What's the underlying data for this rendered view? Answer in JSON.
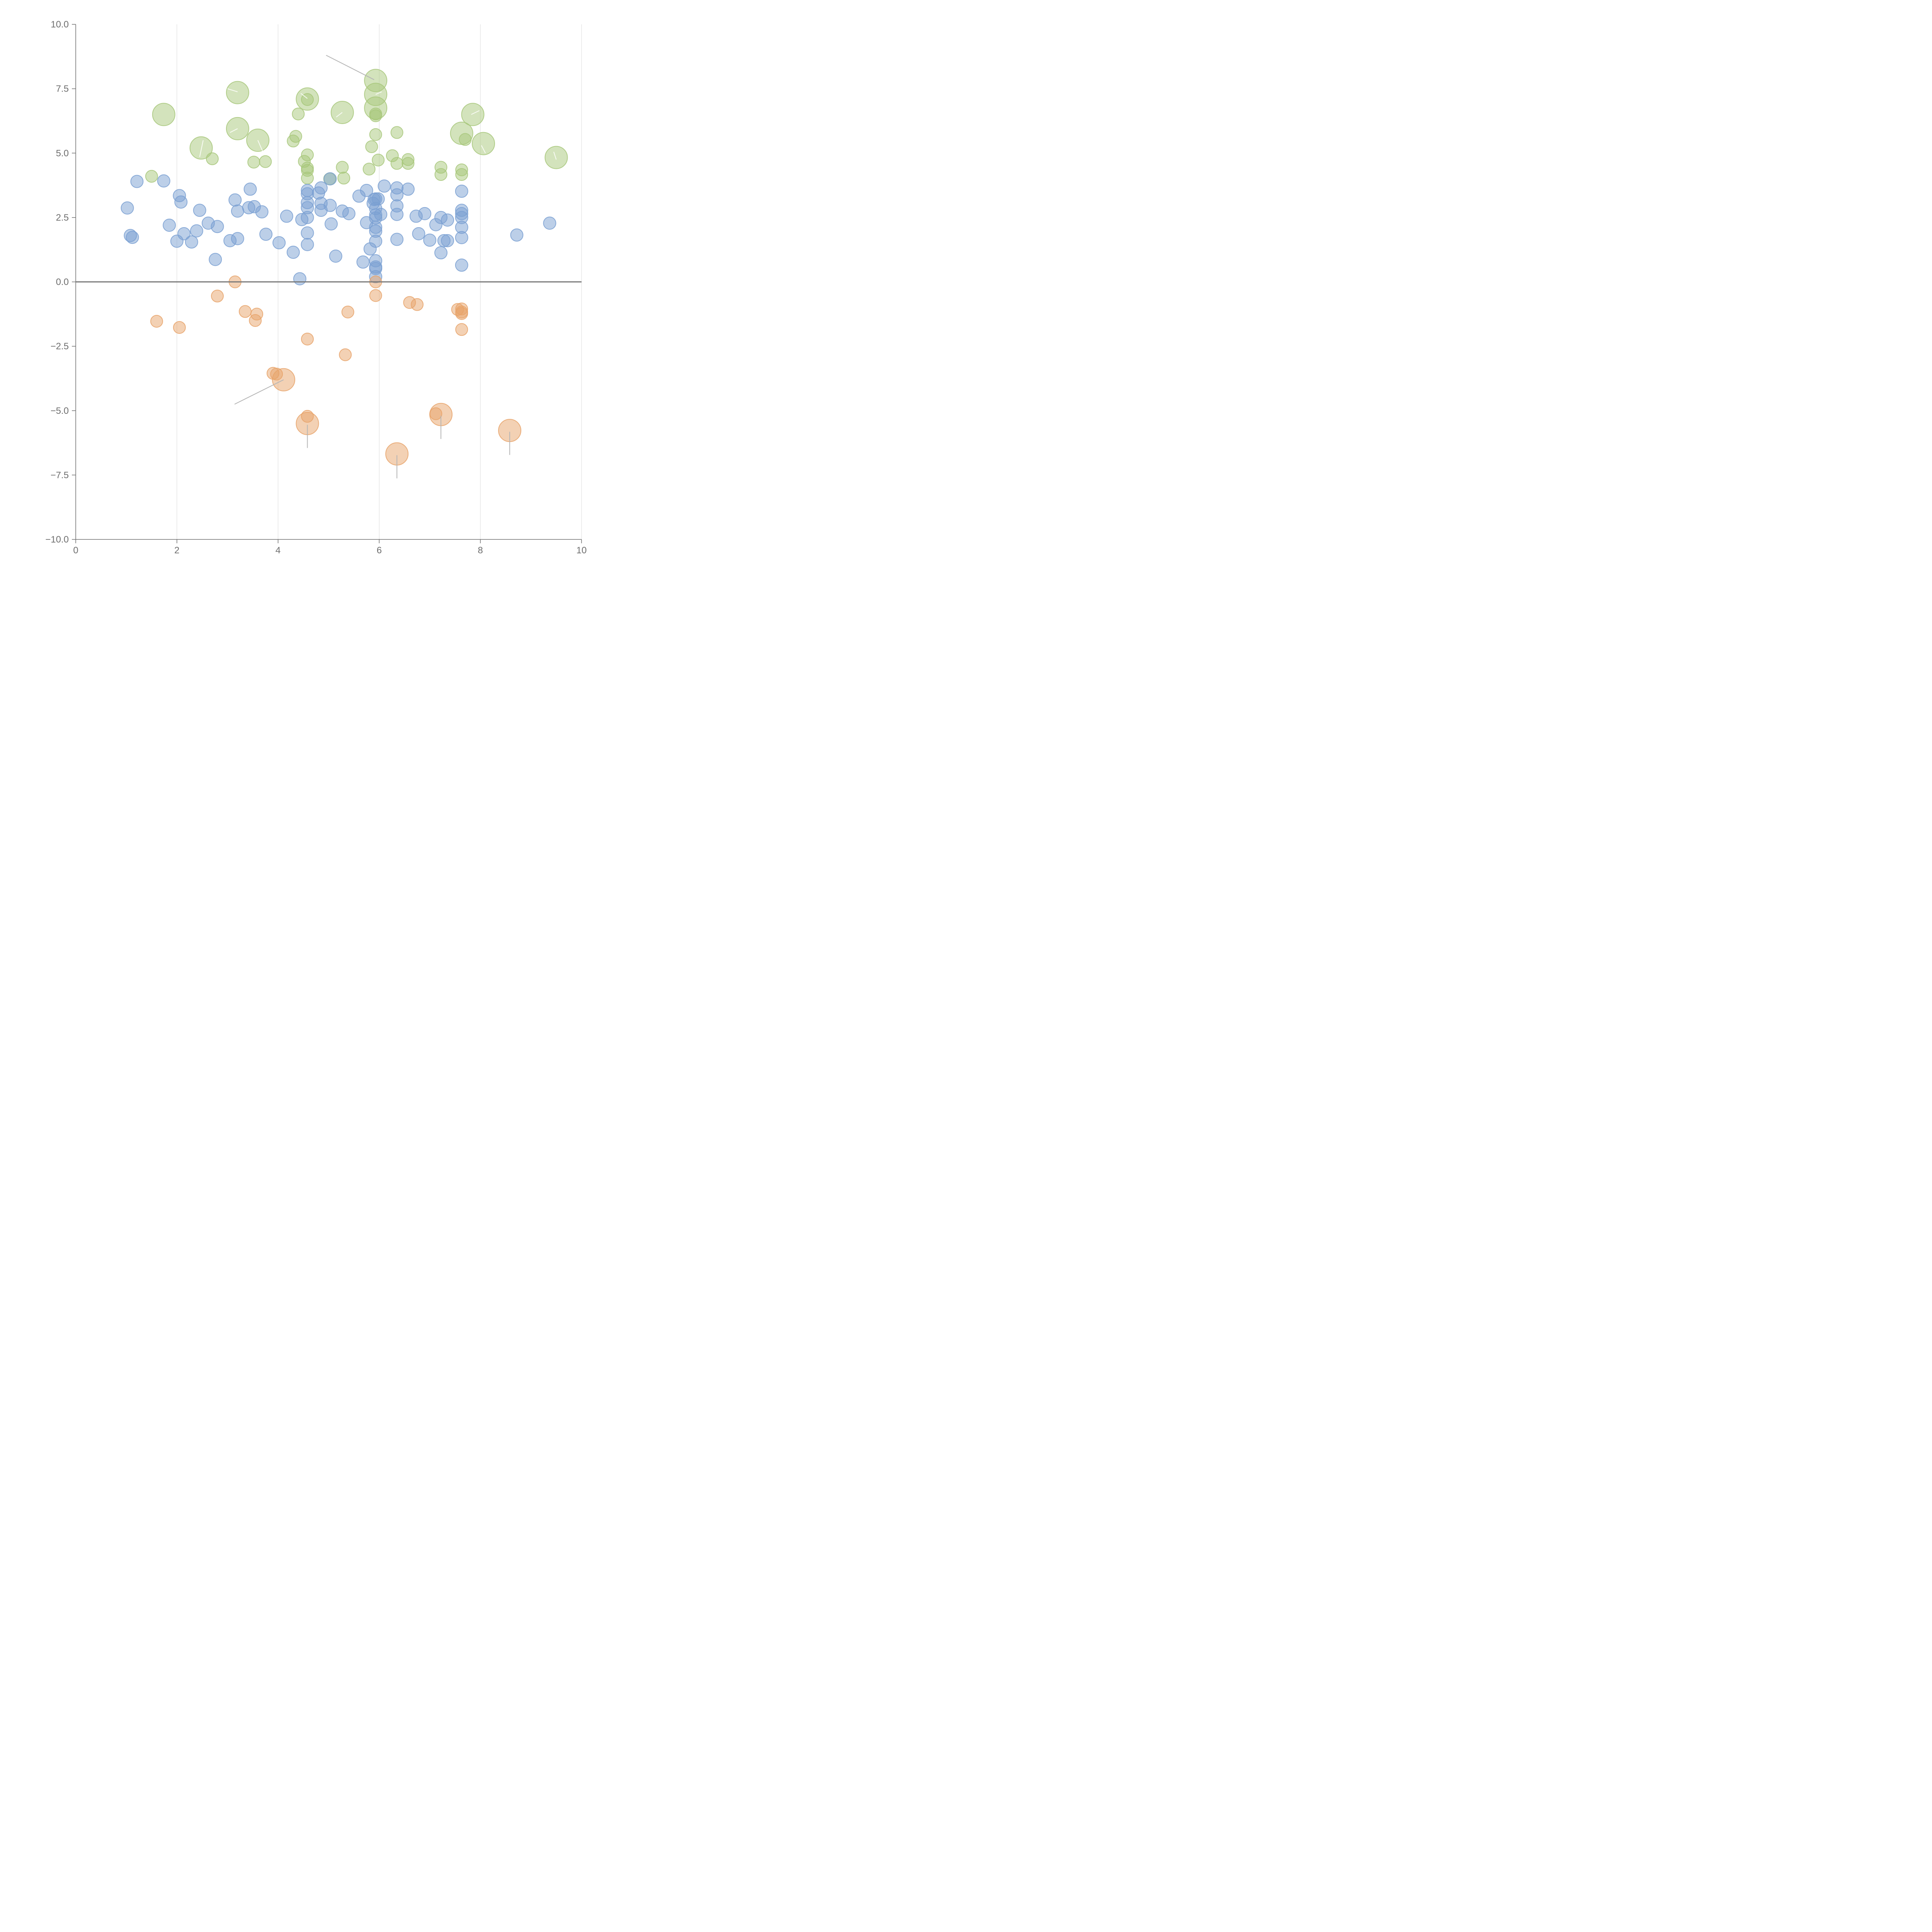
{
  "chart_data": {
    "type": "scatter",
    "title": "",
    "xlabel": "",
    "ylabel": "",
    "xlim": [
      0,
      10
    ],
    "ylim": [
      -10,
      10
    ],
    "x_ticks": [
      0,
      2,
      4,
      6,
      8,
      10
    ],
    "x_tick_labels": [
      "0",
      "2",
      "4",
      "6",
      "8",
      "10"
    ],
    "y_ticks": [
      10,
      7.5,
      5,
      2.5,
      0,
      -2.5,
      -5,
      -7.5,
      -10
    ],
    "y_tick_labels": [
      "10.0",
      "7.5",
      "5.0",
      "2.5",
      "0.0",
      "−2.5",
      "−5.0",
      "−7.5",
      "−10.0"
    ],
    "x_grid": true,
    "y_grid": false,
    "zero_line": true,
    "colors": {
      "green": "#a7c77a",
      "blue": "#7aa0d2",
      "orange": "#e8a36a",
      "tick_text": "#6e6e6e",
      "axis": "#6e6e6e",
      "grid": "#d9d9d9",
      "leader_dark": "#b5b5b5",
      "leader_light": "#ffffff"
    },
    "series": [
      {
        "color_key": "green",
        "points": [
          {
            "x": 3.2,
            "y": 7.35,
            "size": "large"
          },
          {
            "x": 1.74,
            "y": 6.5,
            "size": "large"
          },
          {
            "x": 2.48,
            "y": 5.2,
            "size": "large"
          },
          {
            "x": 3.2,
            "y": 5.95,
            "size": "large"
          },
          {
            "x": 3.6,
            "y": 5.5,
            "size": "large"
          },
          {
            "x": 4.58,
            "y": 7.1,
            "size": "large"
          },
          {
            "x": 5.27,
            "y": 6.58,
            "size": "large"
          },
          {
            "x": 5.93,
            "y": 7.82,
            "size": "large"
          },
          {
            "x": 5.93,
            "y": 7.28,
            "size": "large"
          },
          {
            "x": 5.93,
            "y": 6.75,
            "size": "large"
          },
          {
            "x": 7.63,
            "y": 5.77,
            "size": "large"
          },
          {
            "x": 7.85,
            "y": 6.5,
            "size": "large"
          },
          {
            "x": 8.06,
            "y": 5.37,
            "size": "large"
          },
          {
            "x": 9.5,
            "y": 4.83,
            "size": "large"
          },
          {
            "x": 1.5,
            "y": 4.1,
            "size": "small"
          },
          {
            "x": 2.7,
            "y": 4.78,
            "size": "small"
          },
          {
            "x": 3.52,
            "y": 4.65,
            "size": "small"
          },
          {
            "x": 3.75,
            "y": 4.67,
            "size": "small"
          },
          {
            "x": 4.3,
            "y": 5.47,
            "size": "small"
          },
          {
            "x": 4.35,
            "y": 5.65,
            "size": "small"
          },
          {
            "x": 4.4,
            "y": 6.52,
            "size": "small"
          },
          {
            "x": 4.58,
            "y": 7.08,
            "size": "small"
          },
          {
            "x": 4.52,
            "y": 4.68,
            "size": "small"
          },
          {
            "x": 4.58,
            "y": 4.93,
            "size": "small"
          },
          {
            "x": 4.58,
            "y": 4.42,
            "size": "small"
          },
          {
            "x": 4.58,
            "y": 4.33,
            "size": "small"
          },
          {
            "x": 4.58,
            "y": 4.03,
            "size": "small"
          },
          {
            "x": 5.02,
            "y": 4.0,
            "size": "small"
          },
          {
            "x": 5.27,
            "y": 4.45,
            "size": "small"
          },
          {
            "x": 5.3,
            "y": 4.03,
            "size": "small"
          },
          {
            "x": 5.8,
            "y": 4.38,
            "size": "small"
          },
          {
            "x": 5.85,
            "y": 5.25,
            "size": "small"
          },
          {
            "x": 5.93,
            "y": 5.72,
            "size": "small"
          },
          {
            "x": 5.93,
            "y": 6.52,
            "size": "small"
          },
          {
            "x": 5.93,
            "y": 6.45,
            "size": "small"
          },
          {
            "x": 5.98,
            "y": 4.73,
            "size": "small"
          },
          {
            "x": 6.26,
            "y": 4.9,
            "size": "small"
          },
          {
            "x": 6.35,
            "y": 5.8,
            "size": "small"
          },
          {
            "x": 6.35,
            "y": 4.6,
            "size": "small"
          },
          {
            "x": 6.57,
            "y": 4.75,
            "size": "small"
          },
          {
            "x": 6.57,
            "y": 4.6,
            "size": "small"
          },
          {
            "x": 7.22,
            "y": 4.45,
            "size": "small"
          },
          {
            "x": 7.22,
            "y": 4.17,
            "size": "small"
          },
          {
            "x": 7.63,
            "y": 4.35,
            "size": "small"
          },
          {
            "x": 7.63,
            "y": 4.17,
            "size": "small"
          },
          {
            "x": 7.7,
            "y": 5.53,
            "size": "small"
          }
        ]
      },
      {
        "color_key": "blue",
        "points": [
          {
            "x": 1.02,
            "y": 2.87
          },
          {
            "x": 1.08,
            "y": 1.8
          },
          {
            "x": 1.12,
            "y": 1.73
          },
          {
            "x": 1.21,
            "y": 3.9
          },
          {
            "x": 1.74,
            "y": 3.92
          },
          {
            "x": 1.85,
            "y": 2.2
          },
          {
            "x": 2.0,
            "y": 1.58
          },
          {
            "x": 2.05,
            "y": 3.35
          },
          {
            "x": 2.08,
            "y": 3.1
          },
          {
            "x": 2.14,
            "y": 1.87
          },
          {
            "x": 2.29,
            "y": 1.55
          },
          {
            "x": 2.39,
            "y": 1.98
          },
          {
            "x": 2.45,
            "y": 2.78
          },
          {
            "x": 2.62,
            "y": 2.28
          },
          {
            "x": 2.76,
            "y": 0.87
          },
          {
            "x": 2.8,
            "y": 2.15
          },
          {
            "x": 3.05,
            "y": 1.6
          },
          {
            "x": 3.15,
            "y": 3.18
          },
          {
            "x": 3.2,
            "y": 1.68
          },
          {
            "x": 3.2,
            "y": 2.75
          },
          {
            "x": 3.42,
            "y": 2.88
          },
          {
            "x": 3.45,
            "y": 3.6
          },
          {
            "x": 3.53,
            "y": 2.92
          },
          {
            "x": 3.68,
            "y": 2.72
          },
          {
            "x": 3.76,
            "y": 1.85
          },
          {
            "x": 4.02,
            "y": 1.52
          },
          {
            "x": 4.17,
            "y": 2.55
          },
          {
            "x": 4.3,
            "y": 1.15
          },
          {
            "x": 4.43,
            "y": 0.12
          },
          {
            "x": 4.47,
            "y": 2.42
          },
          {
            "x": 4.58,
            "y": 3.55
          },
          {
            "x": 4.58,
            "y": 3.42
          },
          {
            "x": 4.58,
            "y": 3.08
          },
          {
            "x": 4.58,
            "y": 2.88
          },
          {
            "x": 4.58,
            "y": 2.5
          },
          {
            "x": 4.58,
            "y": 1.9
          },
          {
            "x": 4.58,
            "y": 1.45
          },
          {
            "x": 4.8,
            "y": 3.45
          },
          {
            "x": 4.85,
            "y": 3.65
          },
          {
            "x": 4.85,
            "y": 3.05
          },
          {
            "x": 4.85,
            "y": 2.78
          },
          {
            "x": 5.03,
            "y": 2.97
          },
          {
            "x": 5.05,
            "y": 2.25
          },
          {
            "x": 5.03,
            "y": 4.0
          },
          {
            "x": 5.14,
            "y": 1.0
          },
          {
            "x": 5.27,
            "y": 2.75
          },
          {
            "x": 5.4,
            "y": 2.65
          },
          {
            "x": 5.6,
            "y": 3.33
          },
          {
            "x": 5.68,
            "y": 0.77
          },
          {
            "x": 5.75,
            "y": 2.3
          },
          {
            "x": 5.75,
            "y": 3.55
          },
          {
            "x": 5.82,
            "y": 1.28
          },
          {
            "x": 5.88,
            "y": 3.05
          },
          {
            "x": 5.9,
            "y": 3.2
          },
          {
            "x": 5.93,
            "y": 3.22
          },
          {
            "x": 5.93,
            "y": 2.85
          },
          {
            "x": 5.93,
            "y": 2.6
          },
          {
            "x": 5.93,
            "y": 2.48
          },
          {
            "x": 5.93,
            "y": 2.12
          },
          {
            "x": 5.93,
            "y": 1.97
          },
          {
            "x": 5.93,
            "y": 1.58
          },
          {
            "x": 5.93,
            "y": 0.82
          },
          {
            "x": 5.93,
            "y": 0.58
          },
          {
            "x": 5.93,
            "y": 0.52
          },
          {
            "x": 5.93,
            "y": 0.2
          },
          {
            "x": 5.98,
            "y": 3.22
          },
          {
            "x": 6.03,
            "y": 2.62
          },
          {
            "x": 6.1,
            "y": 3.72
          },
          {
            "x": 6.35,
            "y": 3.65
          },
          {
            "x": 6.35,
            "y": 3.38
          },
          {
            "x": 6.35,
            "y": 2.95
          },
          {
            "x": 6.35,
            "y": 2.62
          },
          {
            "x": 6.35,
            "y": 1.65
          },
          {
            "x": 6.57,
            "y": 3.6
          },
          {
            "x": 6.73,
            "y": 2.55
          },
          {
            "x": 6.78,
            "y": 1.87
          },
          {
            "x": 6.9,
            "y": 2.65
          },
          {
            "x": 7.0,
            "y": 1.62
          },
          {
            "x": 7.12,
            "y": 2.22
          },
          {
            "x": 7.22,
            "y": 2.5
          },
          {
            "x": 7.22,
            "y": 1.13
          },
          {
            "x": 7.28,
            "y": 1.6
          },
          {
            "x": 7.35,
            "y": 1.6
          },
          {
            "x": 7.35,
            "y": 2.4
          },
          {
            "x": 7.63,
            "y": 3.52
          },
          {
            "x": 7.63,
            "y": 2.78
          },
          {
            "x": 7.63,
            "y": 2.65
          },
          {
            "x": 7.63,
            "y": 2.5
          },
          {
            "x": 7.63,
            "y": 2.12
          },
          {
            "x": 7.63,
            "y": 1.72
          },
          {
            "x": 7.63,
            "y": 0.65
          },
          {
            "x": 8.72,
            "y": 1.82
          },
          {
            "x": 9.37,
            "y": 2.28
          }
        ]
      },
      {
        "color_key": "orange",
        "points": [
          {
            "x": 4.11,
            "y": -3.8,
            "size": "large"
          },
          {
            "x": 4.58,
            "y": -5.5,
            "size": "large"
          },
          {
            "x": 6.35,
            "y": -6.68,
            "size": "large"
          },
          {
            "x": 7.22,
            "y": -5.15,
            "size": "large"
          },
          {
            "x": 8.58,
            "y": -5.77,
            "size": "large"
          },
          {
            "x": 1.6,
            "y": -1.53,
            "size": "small"
          },
          {
            "x": 2.05,
            "y": -1.77,
            "size": "small"
          },
          {
            "x": 2.8,
            "y": -0.55,
            "size": "small"
          },
          {
            "x": 3.15,
            "y": 0.0,
            "size": "small"
          },
          {
            "x": 3.35,
            "y": -1.15,
            "size": "small"
          },
          {
            "x": 3.55,
            "y": -1.5,
            "size": "small"
          },
          {
            "x": 3.58,
            "y": -1.25,
            "size": "small"
          },
          {
            "x": 3.9,
            "y": -3.55,
            "size": "small"
          },
          {
            "x": 3.97,
            "y": -3.58,
            "size": "small"
          },
          {
            "x": 4.58,
            "y": -2.22,
            "size": "small"
          },
          {
            "x": 4.58,
            "y": -5.22,
            "size": "small"
          },
          {
            "x": 5.33,
            "y": -2.83,
            "size": "small"
          },
          {
            "x": 5.38,
            "y": -1.17,
            "size": "small"
          },
          {
            "x": 5.93,
            "y": 0.0,
            "size": "small"
          },
          {
            "x": 5.93,
            "y": -0.53,
            "size": "small"
          },
          {
            "x": 6.6,
            "y": -0.8,
            "size": "small"
          },
          {
            "x": 6.75,
            "y": -0.88,
            "size": "small"
          },
          {
            "x": 7.12,
            "y": -5.12,
            "size": "small"
          },
          {
            "x": 7.55,
            "y": -1.07,
            "size": "small"
          },
          {
            "x": 7.63,
            "y": -1.05,
            "size": "small"
          },
          {
            "x": 7.63,
            "y": -1.17,
            "size": "small"
          },
          {
            "x": 7.63,
            "y": -1.23,
            "size": "small"
          },
          {
            "x": 7.63,
            "y": -1.85,
            "size": "small"
          }
        ]
      }
    ],
    "annotation_leaders": [
      {
        "tone": "dark",
        "from": [
          4.95,
          8.8
        ],
        "to": [
          5.9,
          7.85
        ]
      },
      {
        "tone": "dark",
        "from": [
          4.11,
          -3.8
        ],
        "to": [
          3.14,
          -4.75
        ]
      },
      {
        "tone": "dark",
        "from": [
          4.58,
          -5.55
        ],
        "to": [
          4.58,
          -6.45
        ]
      },
      {
        "tone": "dark",
        "from": [
          6.35,
          -6.73
        ],
        "to": [
          6.35,
          -7.63
        ]
      },
      {
        "tone": "dark",
        "from": [
          7.22,
          -5.2
        ],
        "to": [
          7.22,
          -6.1
        ]
      },
      {
        "tone": "dark",
        "from": [
          8.58,
          -5.82
        ],
        "to": [
          8.58,
          -6.72
        ]
      },
      {
        "tone": "light",
        "from": [
          3.0,
          7.5
        ],
        "to": [
          3.2,
          7.38
        ]
      },
      {
        "tone": "light",
        "from": [
          2.52,
          5.5
        ],
        "to": [
          2.45,
          4.85
        ]
      },
      {
        "tone": "light",
        "from": [
          3.05,
          5.8
        ],
        "to": [
          3.2,
          5.95
        ]
      },
      {
        "tone": "light",
        "from": [
          3.7,
          5.05
        ],
        "to": [
          3.6,
          5.5
        ]
      },
      {
        "tone": "light",
        "from": [
          4.45,
          7.32
        ],
        "to": [
          4.58,
          7.12
        ]
      },
      {
        "tone": "light",
        "from": [
          5.15,
          6.4
        ],
        "to": [
          5.27,
          6.58
        ]
      },
      {
        "tone": "light",
        "from": [
          6.05,
          7.38
        ],
        "to": [
          5.93,
          7.28
        ]
      },
      {
        "tone": "light",
        "from": [
          7.82,
          6.5
        ],
        "to": [
          7.98,
          6.65
        ]
      },
      {
        "tone": "light",
        "from": [
          8.02,
          5.3
        ],
        "to": [
          8.1,
          5.0
        ]
      },
      {
        "tone": "light",
        "from": [
          9.45,
          5.05
        ],
        "to": [
          9.5,
          4.75
        ]
      }
    ]
  }
}
